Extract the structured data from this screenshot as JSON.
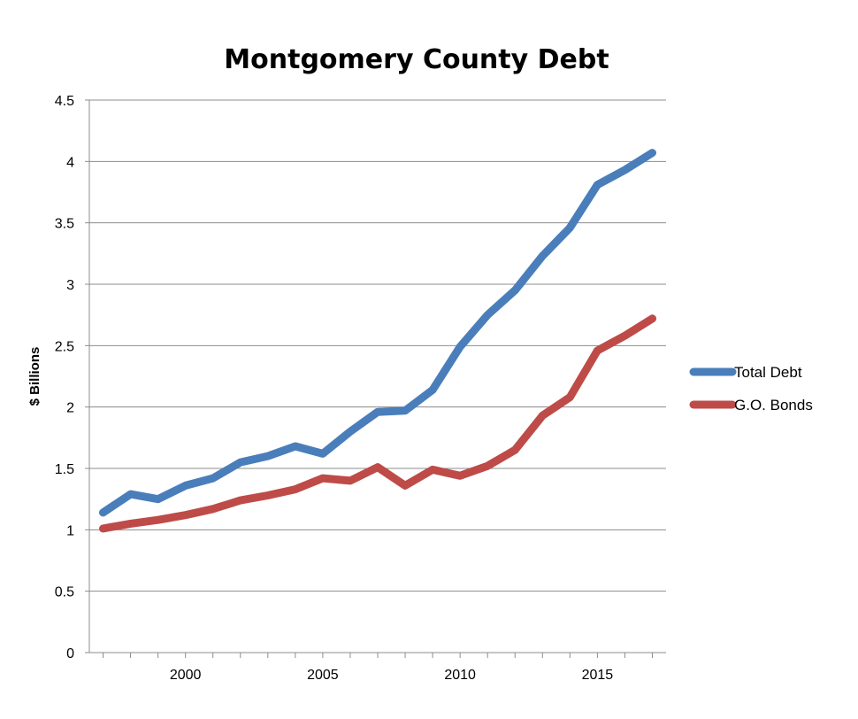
{
  "chart_data": {
    "type": "line",
    "title": "Montgomery County Debt",
    "xlabel": "",
    "ylabel": "$ Billions",
    "ylim": [
      0,
      4.5
    ],
    "yticks": [
      0,
      0.5,
      1,
      1.5,
      2,
      2.5,
      3,
      3.5,
      4,
      4.5
    ],
    "ytick_labels": [
      "0",
      "0.5",
      "1",
      "1.5",
      "2",
      "2.5",
      "3",
      "3.5",
      "4",
      "4.5"
    ],
    "xlim": [
      1996.5,
      2017.5
    ],
    "xticks": [
      2000,
      2005,
      2010,
      2015
    ],
    "xtick_labels": [
      "2000",
      "2005",
      "2010",
      "2015"
    ],
    "grid": true,
    "legend": "right",
    "x": [
      1997,
      1998,
      1999,
      2000,
      2001,
      2002,
      2003,
      2004,
      2005,
      2006,
      2007,
      2008,
      2009,
      2010,
      2011,
      2012,
      2013,
      2014,
      2015,
      2016,
      2017
    ],
    "series": [
      {
        "name": "Total Debt",
        "color": "#4a7ebb",
        "values": [
          1.14,
          1.29,
          1.25,
          1.36,
          1.42,
          1.55,
          1.6,
          1.68,
          1.62,
          1.8,
          1.96,
          1.97,
          2.14,
          2.49,
          2.75,
          2.95,
          3.23,
          3.46,
          3.81,
          3.93,
          4.07
        ]
      },
      {
        "name": "G.O. Bonds",
        "color": "#be4b48",
        "values": [
          1.01,
          1.05,
          1.08,
          1.12,
          1.17,
          1.24,
          1.28,
          1.33,
          1.42,
          1.4,
          1.51,
          1.36,
          1.49,
          1.44,
          1.52,
          1.65,
          1.93,
          2.08,
          2.46,
          2.58,
          2.72
        ]
      }
    ]
  }
}
